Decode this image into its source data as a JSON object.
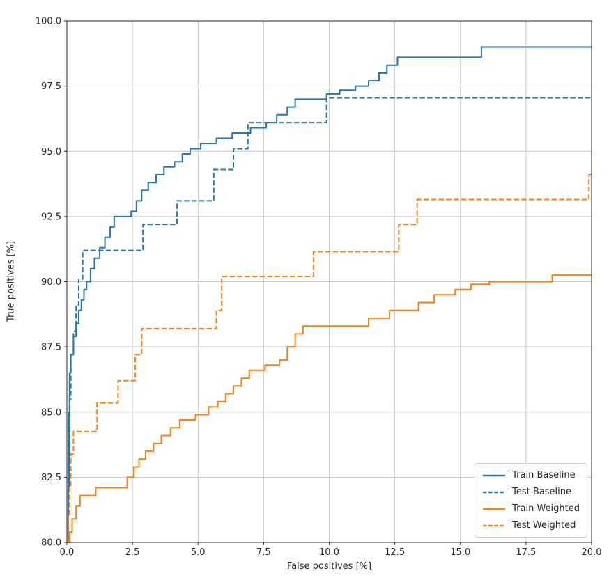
{
  "chart_data": {
    "type": "line",
    "title": "",
    "xlabel": "False positives [%]",
    "ylabel": "True positives [%]",
    "xlim": [
      0.0,
      20.0
    ],
    "ylim": [
      80.0,
      100.0
    ],
    "grid": true,
    "legend_position": "lower right",
    "xticks": [
      0.0,
      2.5,
      5.0,
      7.5,
      10.0,
      12.5,
      15.0,
      17.5,
      20.0
    ],
    "xtick_labels": [
      "0.0",
      "2.5",
      "5.0",
      "7.5",
      "10.0",
      "12.5",
      "15.0",
      "17.5",
      "20.0"
    ],
    "yticks": [
      80.0,
      82.5,
      85.0,
      87.5,
      90.0,
      92.5,
      95.0,
      97.5,
      100.0
    ],
    "ytick_labels": [
      "80.0",
      "82.5",
      "85.0",
      "87.5",
      "90.0",
      "92.5",
      "95.0",
      "97.5",
      "100.0"
    ],
    "colors": {
      "baseline": "#1f77b4",
      "weighted": "#ff7f0e",
      "grid": "#c6c6c6",
      "axis": "#262626"
    },
    "series": [
      {
        "name": "Train Baseline",
        "color": "#1f77b4",
        "style": "solid",
        "step": "hv",
        "points": [
          [
            0,
            80
          ],
          [
            0.05,
            82.0
          ],
          [
            0.08,
            85.0
          ],
          [
            0.1,
            86.5
          ],
          [
            0.15,
            87.2
          ],
          [
            0.25,
            87.9
          ],
          [
            0.35,
            88.4
          ],
          [
            0.45,
            88.9
          ],
          [
            0.55,
            89.3
          ],
          [
            0.65,
            89.7
          ],
          [
            0.75,
            90.0
          ],
          [
            0.9,
            90.5
          ],
          [
            1.05,
            90.9
          ],
          [
            1.25,
            91.3
          ],
          [
            1.45,
            91.7
          ],
          [
            1.65,
            92.1
          ],
          [
            1.8,
            92.5
          ],
          [
            2.45,
            92.7
          ],
          [
            2.65,
            93.1
          ],
          [
            2.85,
            93.5
          ],
          [
            3.1,
            93.8
          ],
          [
            3.4,
            94.1
          ],
          [
            3.7,
            94.4
          ],
          [
            4.1,
            94.6
          ],
          [
            4.4,
            94.9
          ],
          [
            4.7,
            95.1
          ],
          [
            5.1,
            95.3
          ],
          [
            5.7,
            95.5
          ],
          [
            6.3,
            95.7
          ],
          [
            7.0,
            95.9
          ],
          [
            7.6,
            96.1
          ],
          [
            8.0,
            96.4
          ],
          [
            8.4,
            96.7
          ],
          [
            8.7,
            97.0
          ],
          [
            9.9,
            97.2
          ],
          [
            10.4,
            97.35
          ],
          [
            11.0,
            97.5
          ],
          [
            11.5,
            97.7
          ],
          [
            11.9,
            98.0
          ],
          [
            12.2,
            98.3
          ],
          [
            12.6,
            98.6
          ],
          [
            15.8,
            99.0
          ],
          [
            20,
            99.0
          ]
        ]
      },
      {
        "name": "Test Baseline",
        "color": "#1f77b4",
        "style": "dashed",
        "step": "hv",
        "points": [
          [
            0,
            80
          ],
          [
            0.05,
            83.0
          ],
          [
            0.1,
            85.5
          ],
          [
            0.15,
            87.2
          ],
          [
            0.25,
            88.1
          ],
          [
            0.35,
            89.1
          ],
          [
            0.45,
            90.1
          ],
          [
            0.6,
            91.2
          ],
          [
            2.9,
            92.2
          ],
          [
            4.2,
            93.1
          ],
          [
            5.6,
            94.3
          ],
          [
            6.35,
            95.1
          ],
          [
            6.9,
            96.1
          ],
          [
            9.9,
            97.05
          ],
          [
            20,
            97.05
          ]
        ]
      },
      {
        "name": "Train Weighted",
        "color": "#ff7f0e",
        "style": "solid",
        "step": "hv",
        "points": [
          [
            0,
            80
          ],
          [
            0.1,
            80.4
          ],
          [
            0.2,
            80.9
          ],
          [
            0.35,
            81.4
          ],
          [
            0.5,
            81.8
          ],
          [
            1.1,
            82.1
          ],
          [
            2.3,
            82.5
          ],
          [
            2.55,
            82.9
          ],
          [
            2.75,
            83.2
          ],
          [
            3.0,
            83.5
          ],
          [
            3.3,
            83.8
          ],
          [
            3.6,
            84.1
          ],
          [
            3.95,
            84.4
          ],
          [
            4.3,
            84.7
          ],
          [
            4.9,
            84.9
          ],
          [
            5.4,
            85.2
          ],
          [
            5.75,
            85.4
          ],
          [
            6.05,
            85.7
          ],
          [
            6.35,
            86.0
          ],
          [
            6.65,
            86.3
          ],
          [
            6.95,
            86.6
          ],
          [
            7.55,
            86.8
          ],
          [
            8.1,
            87.0
          ],
          [
            8.4,
            87.5
          ],
          [
            8.7,
            88.0
          ],
          [
            9.0,
            88.3
          ],
          [
            11.5,
            88.6
          ],
          [
            12.3,
            88.9
          ],
          [
            13.4,
            89.2
          ],
          [
            14.0,
            89.5
          ],
          [
            14.8,
            89.7
          ],
          [
            15.4,
            89.9
          ],
          [
            16.1,
            90.0
          ],
          [
            18.5,
            90.25
          ],
          [
            20,
            90.25
          ]
        ]
      },
      {
        "name": "Test Weighted",
        "color": "#ff7f0e",
        "style": "dashed",
        "step": "hv",
        "points": [
          [
            0,
            80
          ],
          [
            0.05,
            81.0
          ],
          [
            0.1,
            82.1
          ],
          [
            0.15,
            83.4
          ],
          [
            0.25,
            84.25
          ],
          [
            1.15,
            85.35
          ],
          [
            1.95,
            86.2
          ],
          [
            2.6,
            87.2
          ],
          [
            2.85,
            88.2
          ],
          [
            5.7,
            88.9
          ],
          [
            5.9,
            90.2
          ],
          [
            9.4,
            91.15
          ],
          [
            12.65,
            92.2
          ],
          [
            13.35,
            93.15
          ],
          [
            19.9,
            94.1
          ],
          [
            20,
            94.1
          ]
        ]
      }
    ]
  }
}
